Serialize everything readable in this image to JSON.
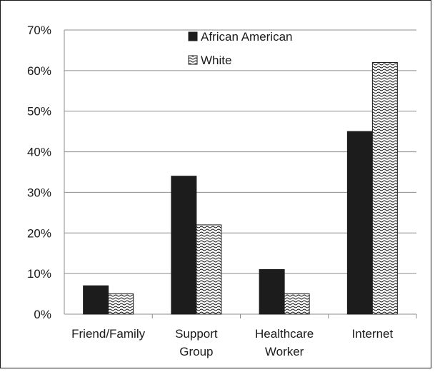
{
  "chart_data": {
    "type": "bar",
    "categories": [
      [
        "Friend/Family"
      ],
      [
        "Support",
        "Group"
      ],
      [
        "Healthcare",
        "Worker"
      ],
      [
        "Internet"
      ]
    ],
    "series": [
      {
        "name": "African American",
        "values": [
          7,
          34,
          11,
          45
        ],
        "color": "#1c1c1c",
        "fill": "solid"
      },
      {
        "name": "White",
        "values": [
          5,
          22,
          5,
          62
        ],
        "color": "#1c1c1c",
        "fill": "wave-pattern"
      }
    ],
    "y_ticks": [
      "0%",
      "10%",
      "20%",
      "30%",
      "40%",
      "50%",
      "60%",
      "70%"
    ],
    "ylim": [
      0,
      70
    ],
    "y_unit": "%",
    "grid": true,
    "legend_position": "top-center",
    "title": "",
    "xlabel": "",
    "ylabel": ""
  }
}
